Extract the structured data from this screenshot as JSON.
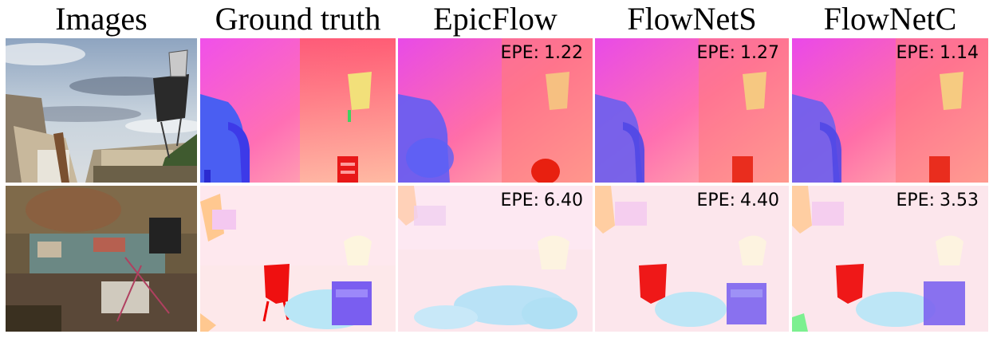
{
  "columns": [
    "Images",
    "Ground truth",
    "EpicFlow",
    "FlowNetS",
    "FlowNetC"
  ],
  "rows": [
    {
      "epe": {
        "label": "EPE:",
        "epicflow": "1.22",
        "flownets": "1.27",
        "flownetc": "1.14"
      }
    },
    {
      "epe": {
        "label": "EPE:",
        "epicflow": "6.40",
        "flownets": "4.40",
        "flownetc": "3.53"
      }
    }
  ],
  "colors": {
    "sky": "#9eb4cc",
    "flow_magenta": "#ee46e6",
    "flow_orange": "#ff9a78",
    "flow_blue": "#6a6af5",
    "flow_yellow": "#f0e070",
    "flow_red": "#e81010",
    "flow_pale": "#fde8e8",
    "flow_cyan": "#b4e6f6"
  }
}
